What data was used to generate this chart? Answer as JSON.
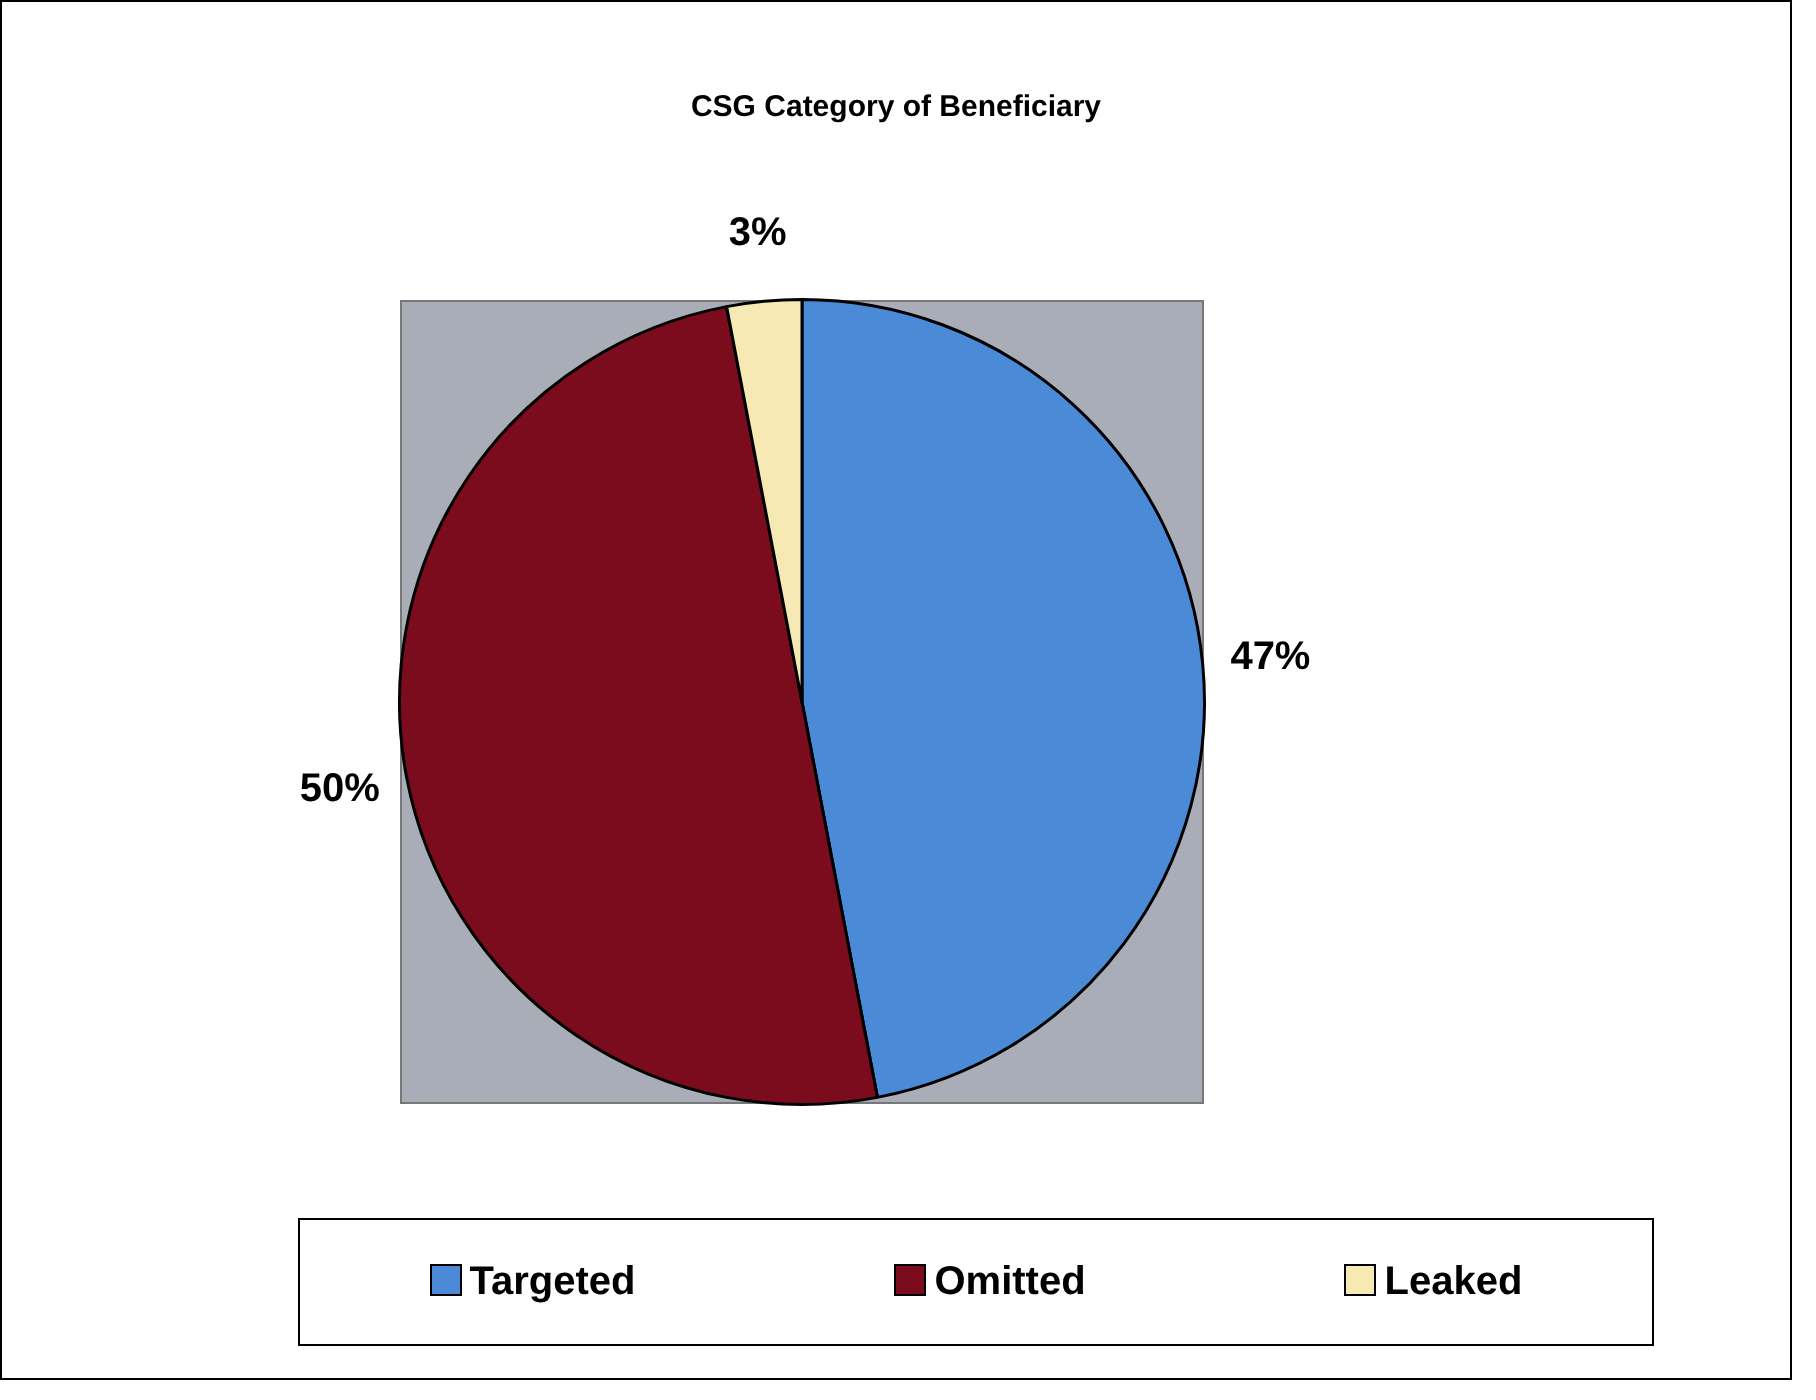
{
  "chart_data": {
    "type": "pie",
    "title": "CSG Category of Beneficiary",
    "categories": [
      "Targeted",
      "Omitted",
      "Leaked"
    ],
    "values": [
      47,
      50,
      3
    ],
    "value_labels": [
      "47%",
      "50%",
      "3%"
    ],
    "colors": [
      "#4a8ad6",
      "#7a0c1e",
      "#f6e9b4"
    ],
    "legend": "bottom"
  }
}
